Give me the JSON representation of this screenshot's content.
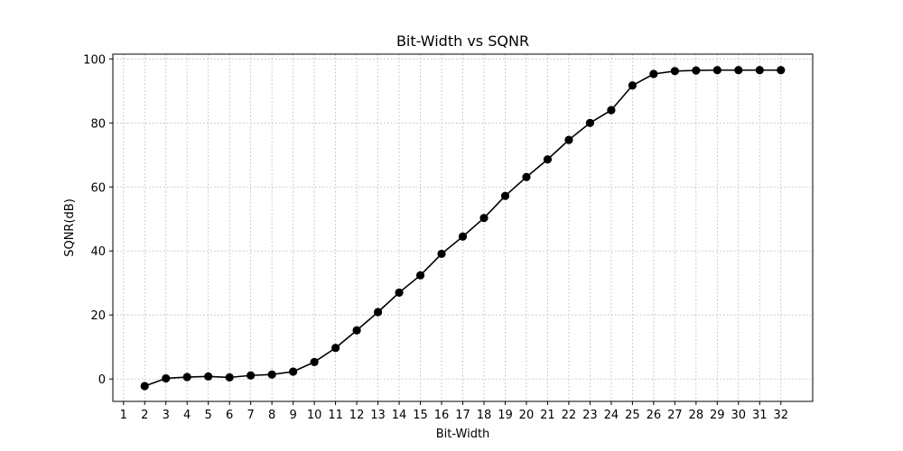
{
  "chart_data": {
    "type": "line",
    "title": "Bit-Width vs SQNR",
    "xlabel": "Bit-Width",
    "ylabel": "SQNR(dB)",
    "xlim": [
      0.5,
      33.5
    ],
    "ylim": [
      -7,
      101.5
    ],
    "x_ticks": [
      1,
      2,
      3,
      4,
      5,
      6,
      7,
      8,
      9,
      10,
      11,
      12,
      13,
      14,
      15,
      16,
      17,
      18,
      19,
      20,
      21,
      22,
      23,
      24,
      25,
      26,
      27,
      28,
      29,
      30,
      31,
      32
    ],
    "y_ticks": [
      0,
      20,
      40,
      60,
      80,
      100
    ],
    "grid": true,
    "grid_style": "dotted",
    "marker": "circle",
    "line_color": "#000000",
    "series": [
      {
        "x": [
          2,
          3,
          4,
          5,
          6,
          7,
          8,
          9,
          10,
          11,
          12,
          13,
          14,
          15,
          16,
          17,
          18,
          19,
          20,
          21,
          22,
          23,
          24,
          25,
          26,
          27,
          28,
          29,
          30,
          31,
          32
        ],
        "y": [
          -2.2,
          0.2,
          0.6,
          0.8,
          0.5,
          1.1,
          1.4,
          2.3,
          5.3,
          9.7,
          15.2,
          20.9,
          27.0,
          32.4,
          39.1,
          44.5,
          50.3,
          57.2,
          63.1,
          68.6,
          74.7,
          80.0,
          84.0,
          91.7,
          95.3,
          96.2,
          96.4,
          96.5,
          96.5,
          96.5,
          96.5
        ]
      }
    ]
  }
}
